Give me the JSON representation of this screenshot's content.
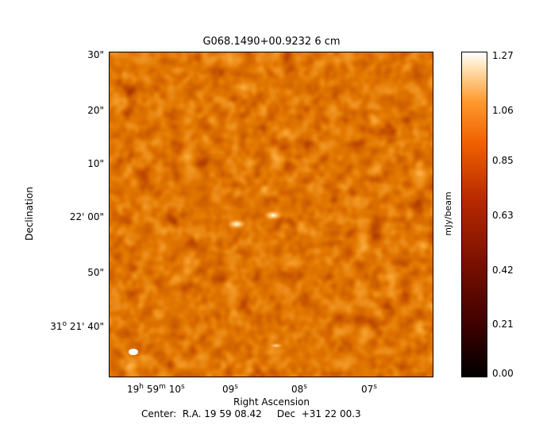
{
  "title": "G068.1490+00.9232 6 cm",
  "y_axis": {
    "label": "Declination",
    "ticks": [
      {
        "text": "30\""
      },
      {
        "text": "20\""
      },
      {
        "text": "10\""
      },
      {
        "text": "22' 00\""
      },
      {
        "text": "50\""
      },
      {
        "deg": "31",
        "deg_sup": "o",
        "rest": " 21' 40\""
      }
    ]
  },
  "x_axis": {
    "label": "Right Ascension",
    "ticks": [
      {
        "h": "19",
        "h_sup": "h",
        "m": " 59",
        "m_sup": "m",
        "s": " 10",
        "s_sup": "s"
      },
      {
        "s": "09",
        "s_sup": "s"
      },
      {
        "s": "08",
        "s_sup": "s"
      },
      {
        "s": "07",
        "s_sup": "s"
      }
    ]
  },
  "colorbar": {
    "label": "mJy/beam",
    "ticks": [
      "1.27",
      "1.06",
      "0.85",
      "0.63",
      "0.42",
      "0.21",
      "0.00"
    ]
  },
  "center": {
    "prefix": "Center:",
    "ra_label": "R.A.",
    "ra_value": "19 59 08.42",
    "dec_label": "Dec",
    "dec_value": "+31 22 00.3"
  },
  "colors": {
    "frame": "#000000",
    "beam": "#ffffff"
  },
  "image": {
    "map": "radio-continuum-intensity",
    "beam": "restoring-beam-ellipse"
  }
}
